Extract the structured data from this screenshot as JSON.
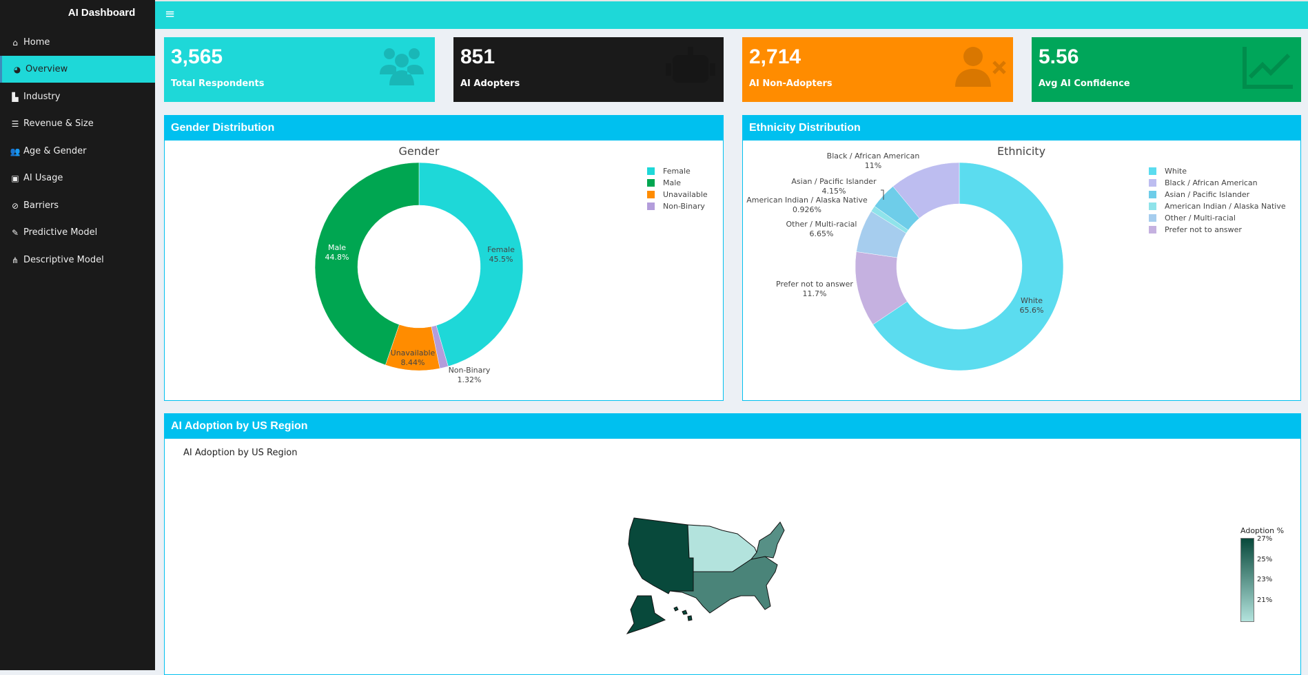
{
  "sidebar": {
    "brand": "AI Dashboard",
    "items": [
      {
        "label": "Home",
        "icon": "home-icon",
        "glyph": "⌂"
      },
      {
        "label": "Overview",
        "icon": "dashboard-icon",
        "glyph": "◕",
        "active": true
      },
      {
        "label": "Industry",
        "icon": "industry-icon",
        "glyph": "▙"
      },
      {
        "label": "Revenue & Size",
        "icon": "bar-chart-icon",
        "glyph": "☰"
      },
      {
        "label": "Age & Gender",
        "icon": "users-icon",
        "glyph": "👥"
      },
      {
        "label": "AI Usage",
        "icon": "robot-icon",
        "glyph": "▣"
      },
      {
        "label": "Barriers",
        "icon": "ban-icon",
        "glyph": "⊘"
      },
      {
        "label": "Predictive Model",
        "icon": "pencil-icon",
        "glyph": "✎"
      },
      {
        "label": "Descriptive Model",
        "icon": "sitemap-icon",
        "glyph": "⋔"
      }
    ]
  },
  "header": {
    "menu_icon": "≡"
  },
  "stats": [
    {
      "value": "3,565",
      "label": "Total Respondents",
      "color": "#1ed8d8",
      "icon": "users-icon"
    },
    {
      "value": "851",
      "label": "AI Adopters",
      "color": "#1a1a1a",
      "icon": "robot-icon"
    },
    {
      "value": "2,714",
      "label": "AI Non-Adopters",
      "color": "#ff8c00",
      "icon": "user-times-icon"
    },
    {
      "value": "5.56",
      "label": "Avg AI Confidence",
      "color": "#00a65a",
      "icon": "line-chart-icon"
    }
  ],
  "panels": {
    "gender": "Gender Distribution",
    "ethnicity": "Ethnicity Distribution",
    "region": "AI Adoption by US Region"
  },
  "chart_data": [
    {
      "type": "pie",
      "hole": true,
      "title": "Gender",
      "legend": "top-right",
      "labels": [
        "Female",
        "Male",
        "Unavailable",
        "Non-Binary"
      ],
      "values": [
        45.5,
        44.8,
        8.44,
        1.32
      ],
      "text": [
        "45.5%",
        "44.8%",
        "8.44%",
        "1.32%"
      ],
      "colors": [
        "#1ed8d8",
        "#00a651",
        "#ff8c00",
        "#b39ddb"
      ]
    },
    {
      "type": "pie",
      "hole": true,
      "title": "Ethnicity",
      "legend": "top-right",
      "labels": [
        "White",
        "Black / African American",
        "Asian / Pacific Islander",
        "American Indian / Alaska Native",
        "Other / Multi-racial",
        "Prefer not to answer"
      ],
      "values": [
        65.6,
        11,
        4.15,
        0.926,
        6.65,
        11.7
      ],
      "text": [
        "65.6%",
        "11%",
        "4.15%",
        "0.926%",
        "6.65%",
        "11.7%"
      ],
      "colors": [
        "#5bdcef",
        "#bdbdf0",
        "#6ecde9",
        "#8fe3ea",
        "#a6cdee",
        "#c5b1e0"
      ]
    },
    {
      "type": "choropleth",
      "title": "AI Adoption by US Region",
      "colorbar_title": "Adoption %",
      "colorbar_ticks": [
        "27%",
        "25%",
        "23%",
        "21%"
      ],
      "colorscale": [
        "#b3e3dd",
        "#08493b"
      ],
      "regions": [
        {
          "name": "West",
          "value": 27
        },
        {
          "name": "Midwest",
          "value": 20.5
        },
        {
          "name": "South",
          "value": 24.5
        },
        {
          "name": "Northeast",
          "value": 24
        }
      ]
    }
  ]
}
